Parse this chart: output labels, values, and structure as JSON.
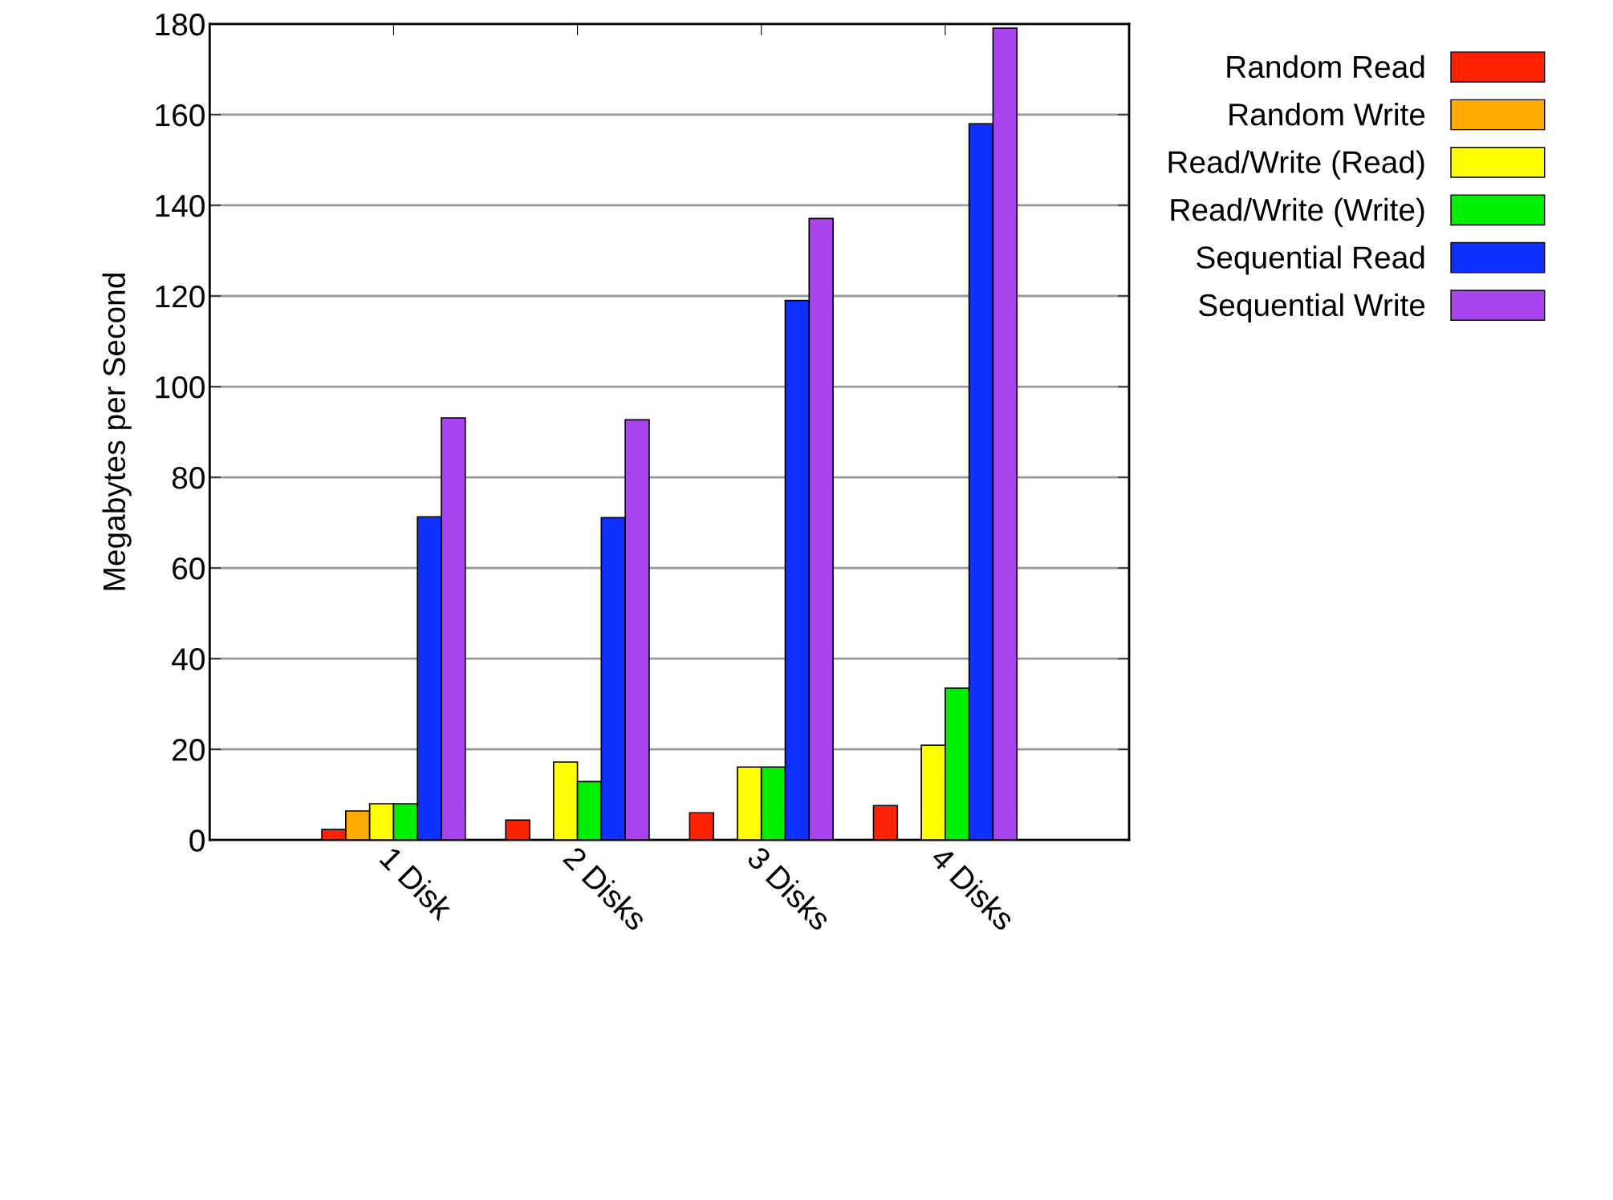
{
  "chart_data": {
    "type": "bar",
    "ylabel": "Megabytes per Second",
    "categories": [
      "1 Disk",
      "2 Disks",
      "3 Disks",
      "4 Disks"
    ],
    "series": [
      {
        "name": "Random Read",
        "color": "#ff2200",
        "values": [
          2.3,
          4.4,
          6.0,
          7.6
        ]
      },
      {
        "name": "Random Write",
        "color": "#ffaa00",
        "values": [
          6.4,
          null,
          null,
          null
        ]
      },
      {
        "name": "Read/Write (Read)",
        "color": "#ffff00",
        "values": [
          8.0,
          17.2,
          16.1,
          20.9
        ]
      },
      {
        "name": "Read/Write (Write)",
        "color": "#00ee00",
        "values": [
          8.0,
          12.9,
          16.1,
          33.5
        ]
      },
      {
        "name": "Sequential Read",
        "color": "#1030ff",
        "values": [
          71.3,
          71.1,
          119.0,
          158.0
        ]
      },
      {
        "name": "Sequential Write",
        "color": "#aa44ee",
        "values": [
          93.1,
          92.7,
          137.1,
          179.1
        ]
      }
    ],
    "ylim": [
      0,
      180
    ],
    "yticks": [
      0,
      20,
      40,
      60,
      80,
      100,
      120,
      140,
      160,
      180
    ],
    "grid": "y",
    "legend": "top right"
  }
}
